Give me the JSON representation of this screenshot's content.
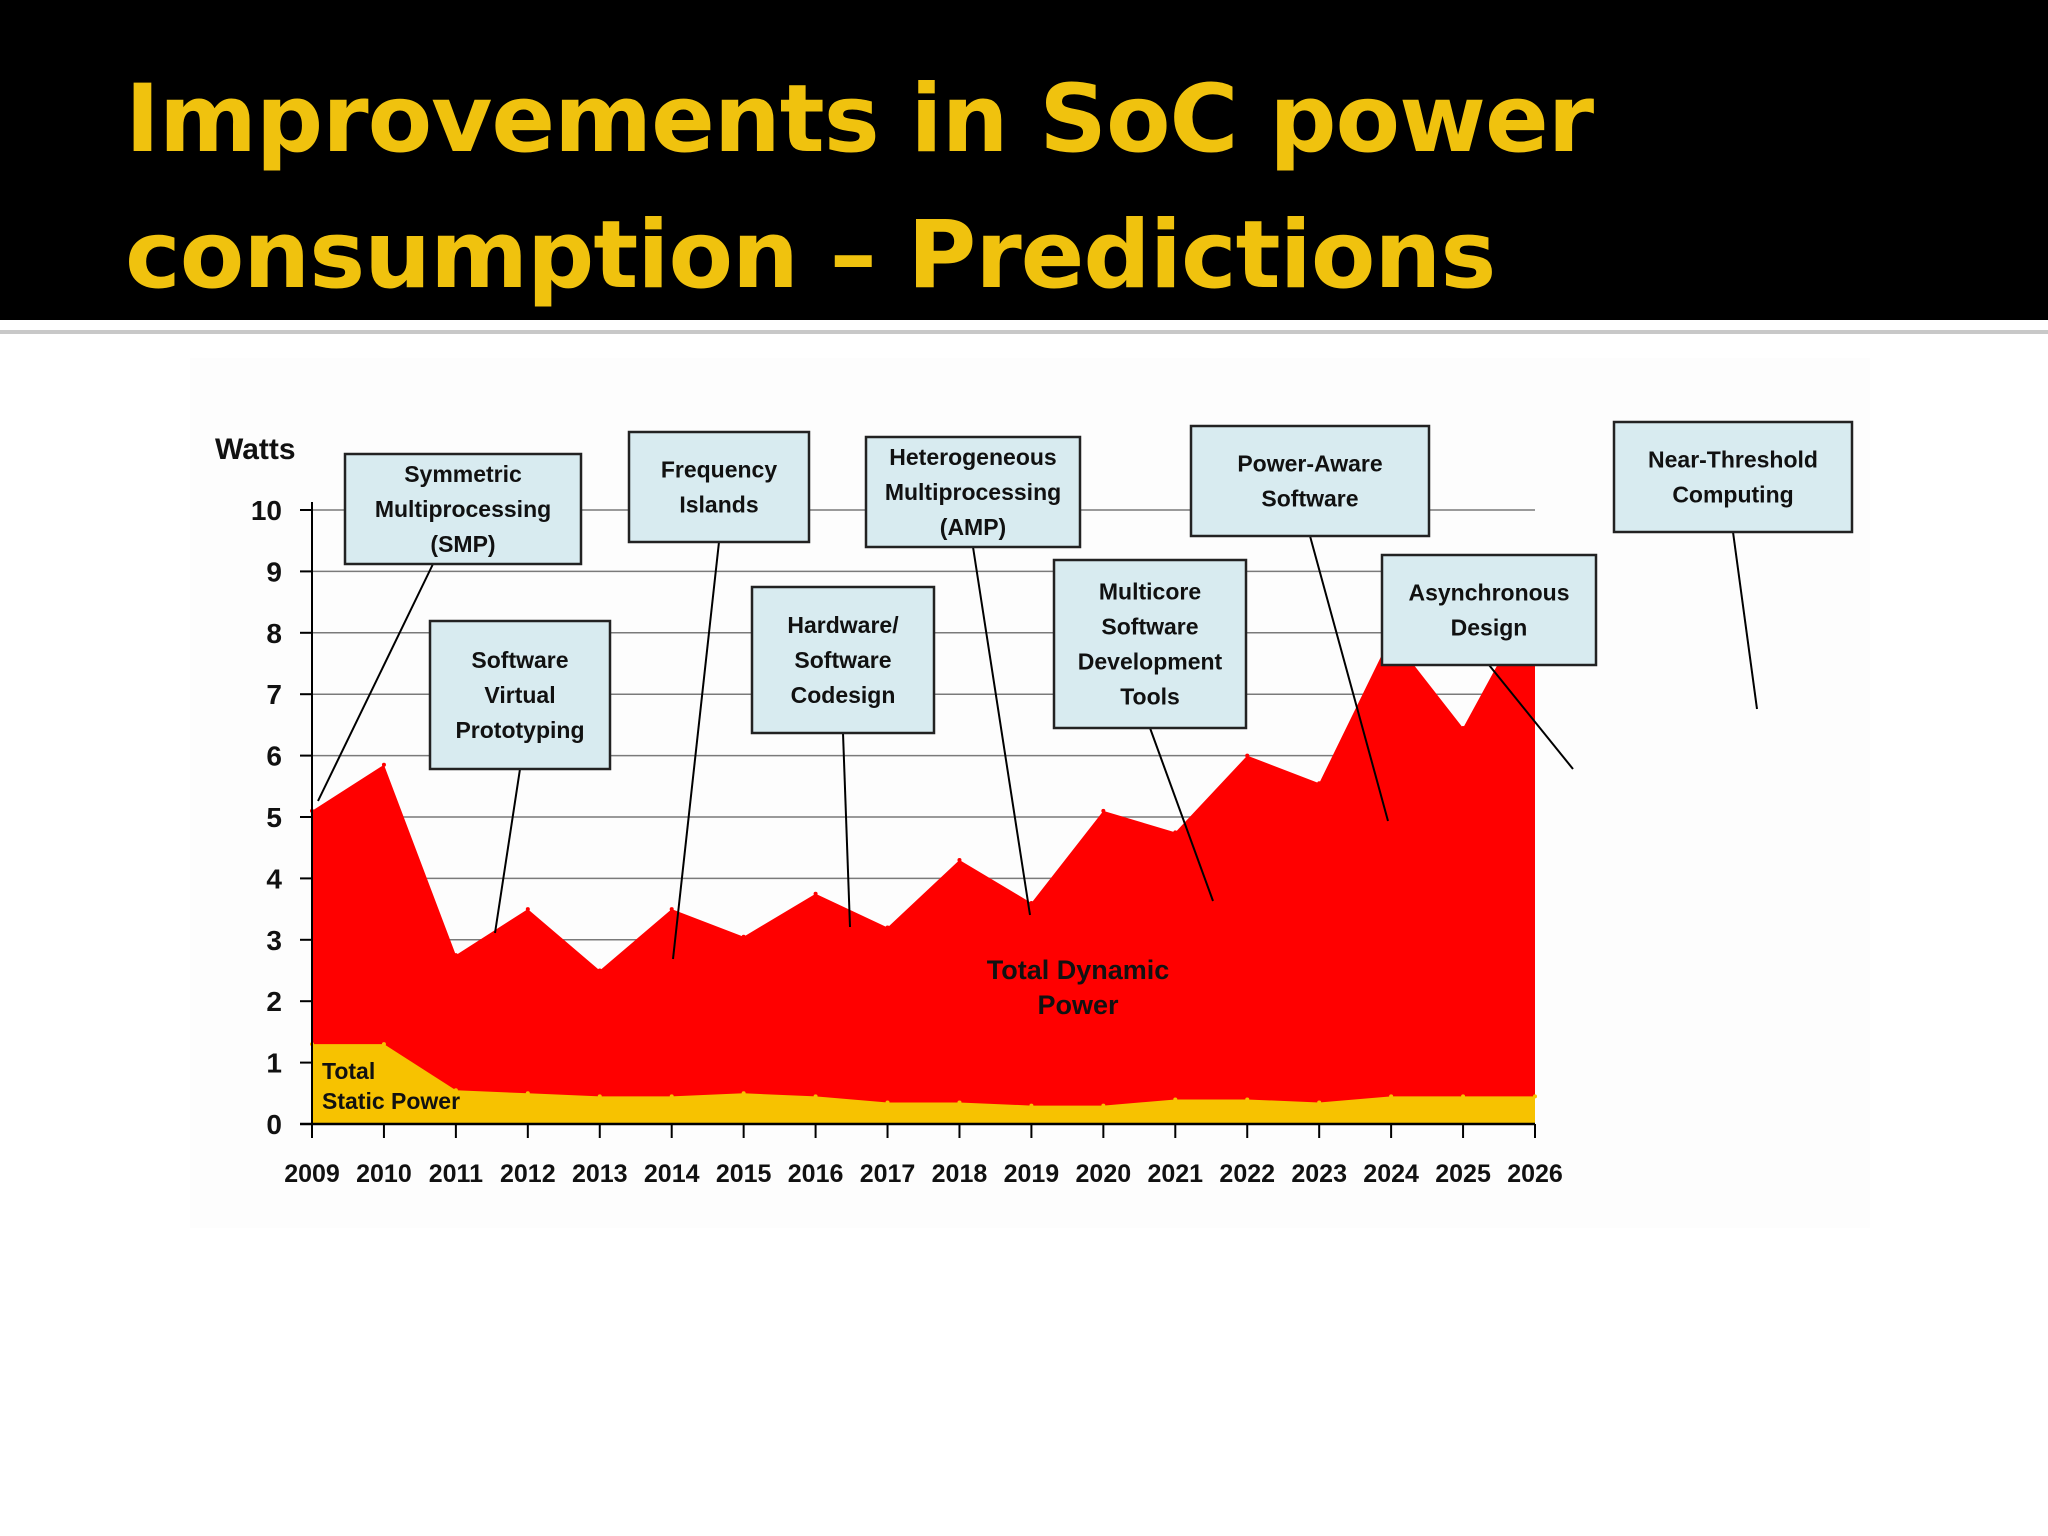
{
  "slide": {
    "title_line1": "Improvements in SoC power",
    "title_line2": "consumption – Predictions",
    "title_color": "#f0c20e",
    "title_bar_color": "#000000"
  },
  "chart_data": {
    "type": "area",
    "title": "",
    "ylabel": "Watts",
    "xlabel": "",
    "ylim": [
      0,
      10
    ],
    "yticks": [
      0,
      1,
      2,
      3,
      4,
      5,
      6,
      7,
      8,
      9,
      10
    ],
    "grid": true,
    "x": [
      "2009",
      "2010",
      "2011",
      "2012",
      "2013",
      "2014",
      "2015",
      "2016",
      "2017",
      "2018",
      "2019",
      "2020",
      "2021",
      "2022",
      "2023",
      "2024",
      "2025",
      "2026"
    ],
    "series": [
      {
        "name": "Total Static Power",
        "label_lines": [
          "Total",
          "Static Power"
        ],
        "color": "#f7c200",
        "values": [
          1.3,
          1.3,
          0.55,
          0.5,
          0.45,
          0.45,
          0.5,
          0.45,
          0.35,
          0.35,
          0.3,
          0.3,
          0.4,
          0.4,
          0.35,
          0.45,
          0.45,
          0.45
        ]
      },
      {
        "name": "Total Dynamic Power",
        "label_lines": [
          "Total Dynamic",
          "Power"
        ],
        "color": "#ff0000",
        "totals": [
          5.1,
          5.85,
          2.75,
          3.5,
          2.5,
          3.5,
          3.05,
          3.75,
          3.2,
          4.3,
          3.6,
          5.1,
          4.75,
          6.0,
          5.55,
          7.95,
          6.45,
          8.6
        ]
      }
    ],
    "annotations": [
      {
        "lines": [
          "Symmetric",
          "Multiprocessing",
          "(SMP)"
        ],
        "year": "2009"
      },
      {
        "lines": [
          "Software",
          "Virtual",
          "Prototyping"
        ],
        "year": "2011"
      },
      {
        "lines": [
          "Frequency",
          "Islands"
        ],
        "year": "2013"
      },
      {
        "lines": [
          "Hardware/",
          "Software",
          "Codesign"
        ],
        "year": "2015"
      },
      {
        "lines": [
          "Heterogeneous",
          "Multiprocessing",
          "(AMP)"
        ],
        "year": "2017"
      },
      {
        "lines": [
          "Multicore",
          "Software",
          "Development",
          "Tools"
        ],
        "year": "2019"
      },
      {
        "lines": [
          "Power-Aware",
          "Software"
        ],
        "year": "2021"
      },
      {
        "lines": [
          "Asynchronous",
          "Design"
        ],
        "year": "2023"
      },
      {
        "lines": [
          "Near-Threshold",
          "Computing"
        ],
        "year": "2025"
      }
    ]
  }
}
